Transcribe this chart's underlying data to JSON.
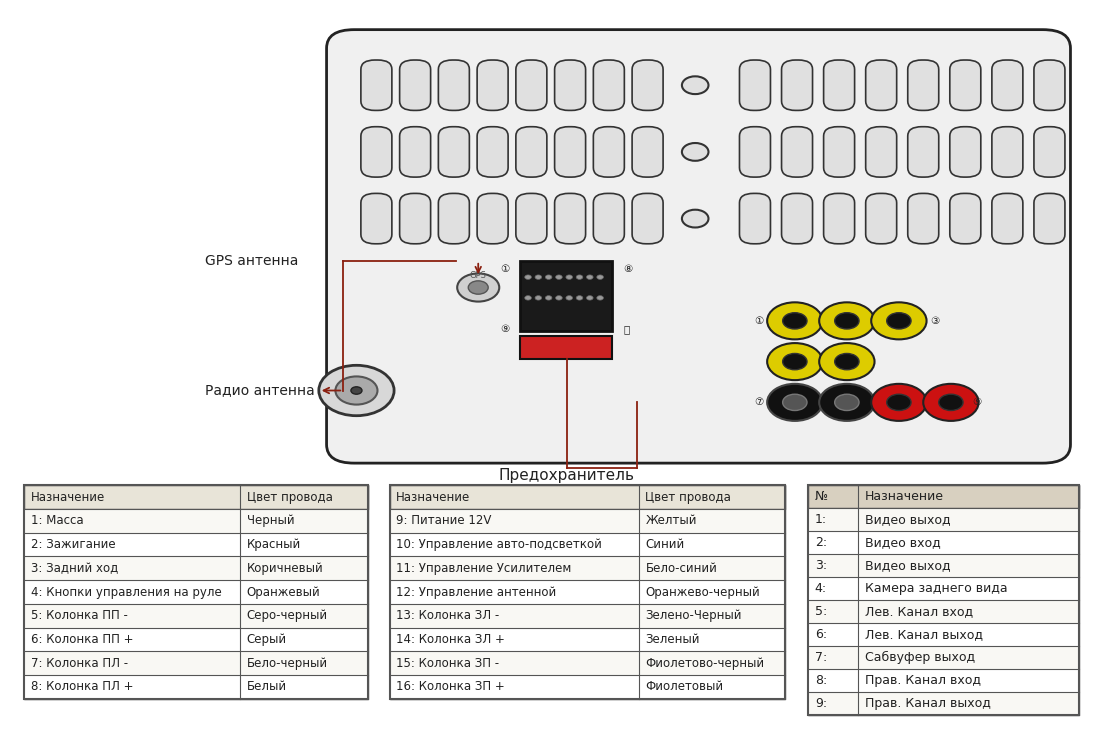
{
  "bg_color": "#ffffff",
  "board_color": "#f0f0f0",
  "board_stroke": "#222222",
  "table1_header_bg": "#e8e4d8",
  "table2_header_bg": "#e8e4d8",
  "table3_header_bg": "#d8d0c0",
  "table_border": "#555555",
  "annotation_color": "#8B2010",
  "label_color": "#222222",
  "gps_label": "GPS антенна",
  "radio_label": "Радио антенна",
  "fuse_label": "Предохранитель",
  "table1_headers": [
    "Назначение",
    "Цвет провода"
  ],
  "table1_rows": [
    [
      "1: Масса",
      "Черный"
    ],
    [
      "2: Зажигание",
      "Красный"
    ],
    [
      "3: Задний ход",
      "Коричневый"
    ],
    [
      "4: Кнопки управления на руле",
      "Оранжевый"
    ],
    [
      "5: Колонка ПП -",
      "Серо-черный"
    ],
    [
      "6: Колонка ПП +",
      "Серый"
    ],
    [
      "7: Колонка ПЛ -",
      "Бело-черный"
    ],
    [
      "8: Колонка ПЛ +",
      "Белый"
    ]
  ],
  "table2_headers": [
    "Назначение",
    "Цвет провода"
  ],
  "table2_rows": [
    [
      "9: Питание 12V",
      "Желтый"
    ],
    [
      "10: Управление авто-подсветкой",
      "Синий"
    ],
    [
      "11: Управление Усилителем",
      "Бело-синий"
    ],
    [
      "12: Управление антенной",
      "Оранжево-черный"
    ],
    [
      "13: Колонка ЗЛ -",
      "Зелено-Черный"
    ],
    [
      "14: Колонка ЗЛ +",
      "Зеленый"
    ],
    [
      "15: Колонка ЗП -",
      "Фиолетово-черный"
    ],
    [
      "16: Колонка ЗП +",
      "Фиолетовый"
    ]
  ],
  "table3_headers": [
    "№",
    "Назначение"
  ],
  "table3_rows": [
    [
      "1:",
      "Видео выход"
    ],
    [
      "2:",
      "Видео вход"
    ],
    [
      "3:",
      "Видео выход"
    ],
    [
      "4:",
      "Камера заднего вида"
    ],
    [
      "5:",
      "Лев. Канал вход"
    ],
    [
      "6:",
      "Лев. Канал выход"
    ],
    [
      "7:",
      "Сабвуфер выход"
    ],
    [
      "8:",
      "Прав. Канал вход"
    ],
    [
      "9:",
      "Прав. Канал выход"
    ]
  ]
}
